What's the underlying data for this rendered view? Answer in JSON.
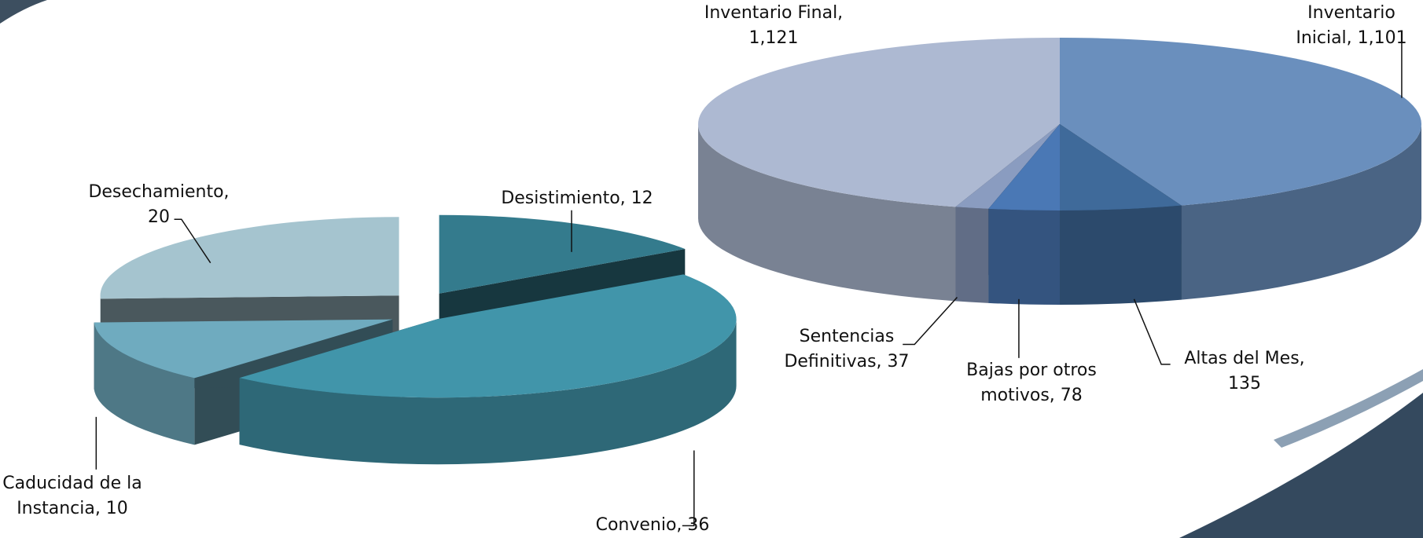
{
  "chart_data": [
    {
      "type": "pie",
      "values": [
        12,
        36,
        10,
        20
      ],
      "value_labels": [
        [
          "Desistimiento, 12"
        ],
        [
          "Convenio, 36"
        ],
        [
          "Caducidad de la",
          "Instancia, 10"
        ],
        [
          "Desechamiento,",
          "20"
        ]
      ],
      "colors": [
        "#347b8d",
        "#4195aa",
        "#6fabbf",
        "#a5c4cf"
      ]
    },
    {
      "type": "pie",
      "values": [
        1101,
        135,
        78,
        37,
        1121
      ],
      "value_labels": [
        [
          "Inventario",
          "Inicial, 1,101"
        ],
        [
          "Altas del Mes,",
          "135"
        ],
        [
          "Bajas por otros",
          "motivos, 78"
        ],
        [
          "Sentencias",
          "Definitivas, 37"
        ],
        [
          "Inventario Final,",
          "1,121"
        ]
      ],
      "colors": [
        "#6a8fbd",
        "#3f6a9a",
        "#4a78b5",
        "#8a9cc0",
        "#adb9d2"
      ]
    }
  ]
}
